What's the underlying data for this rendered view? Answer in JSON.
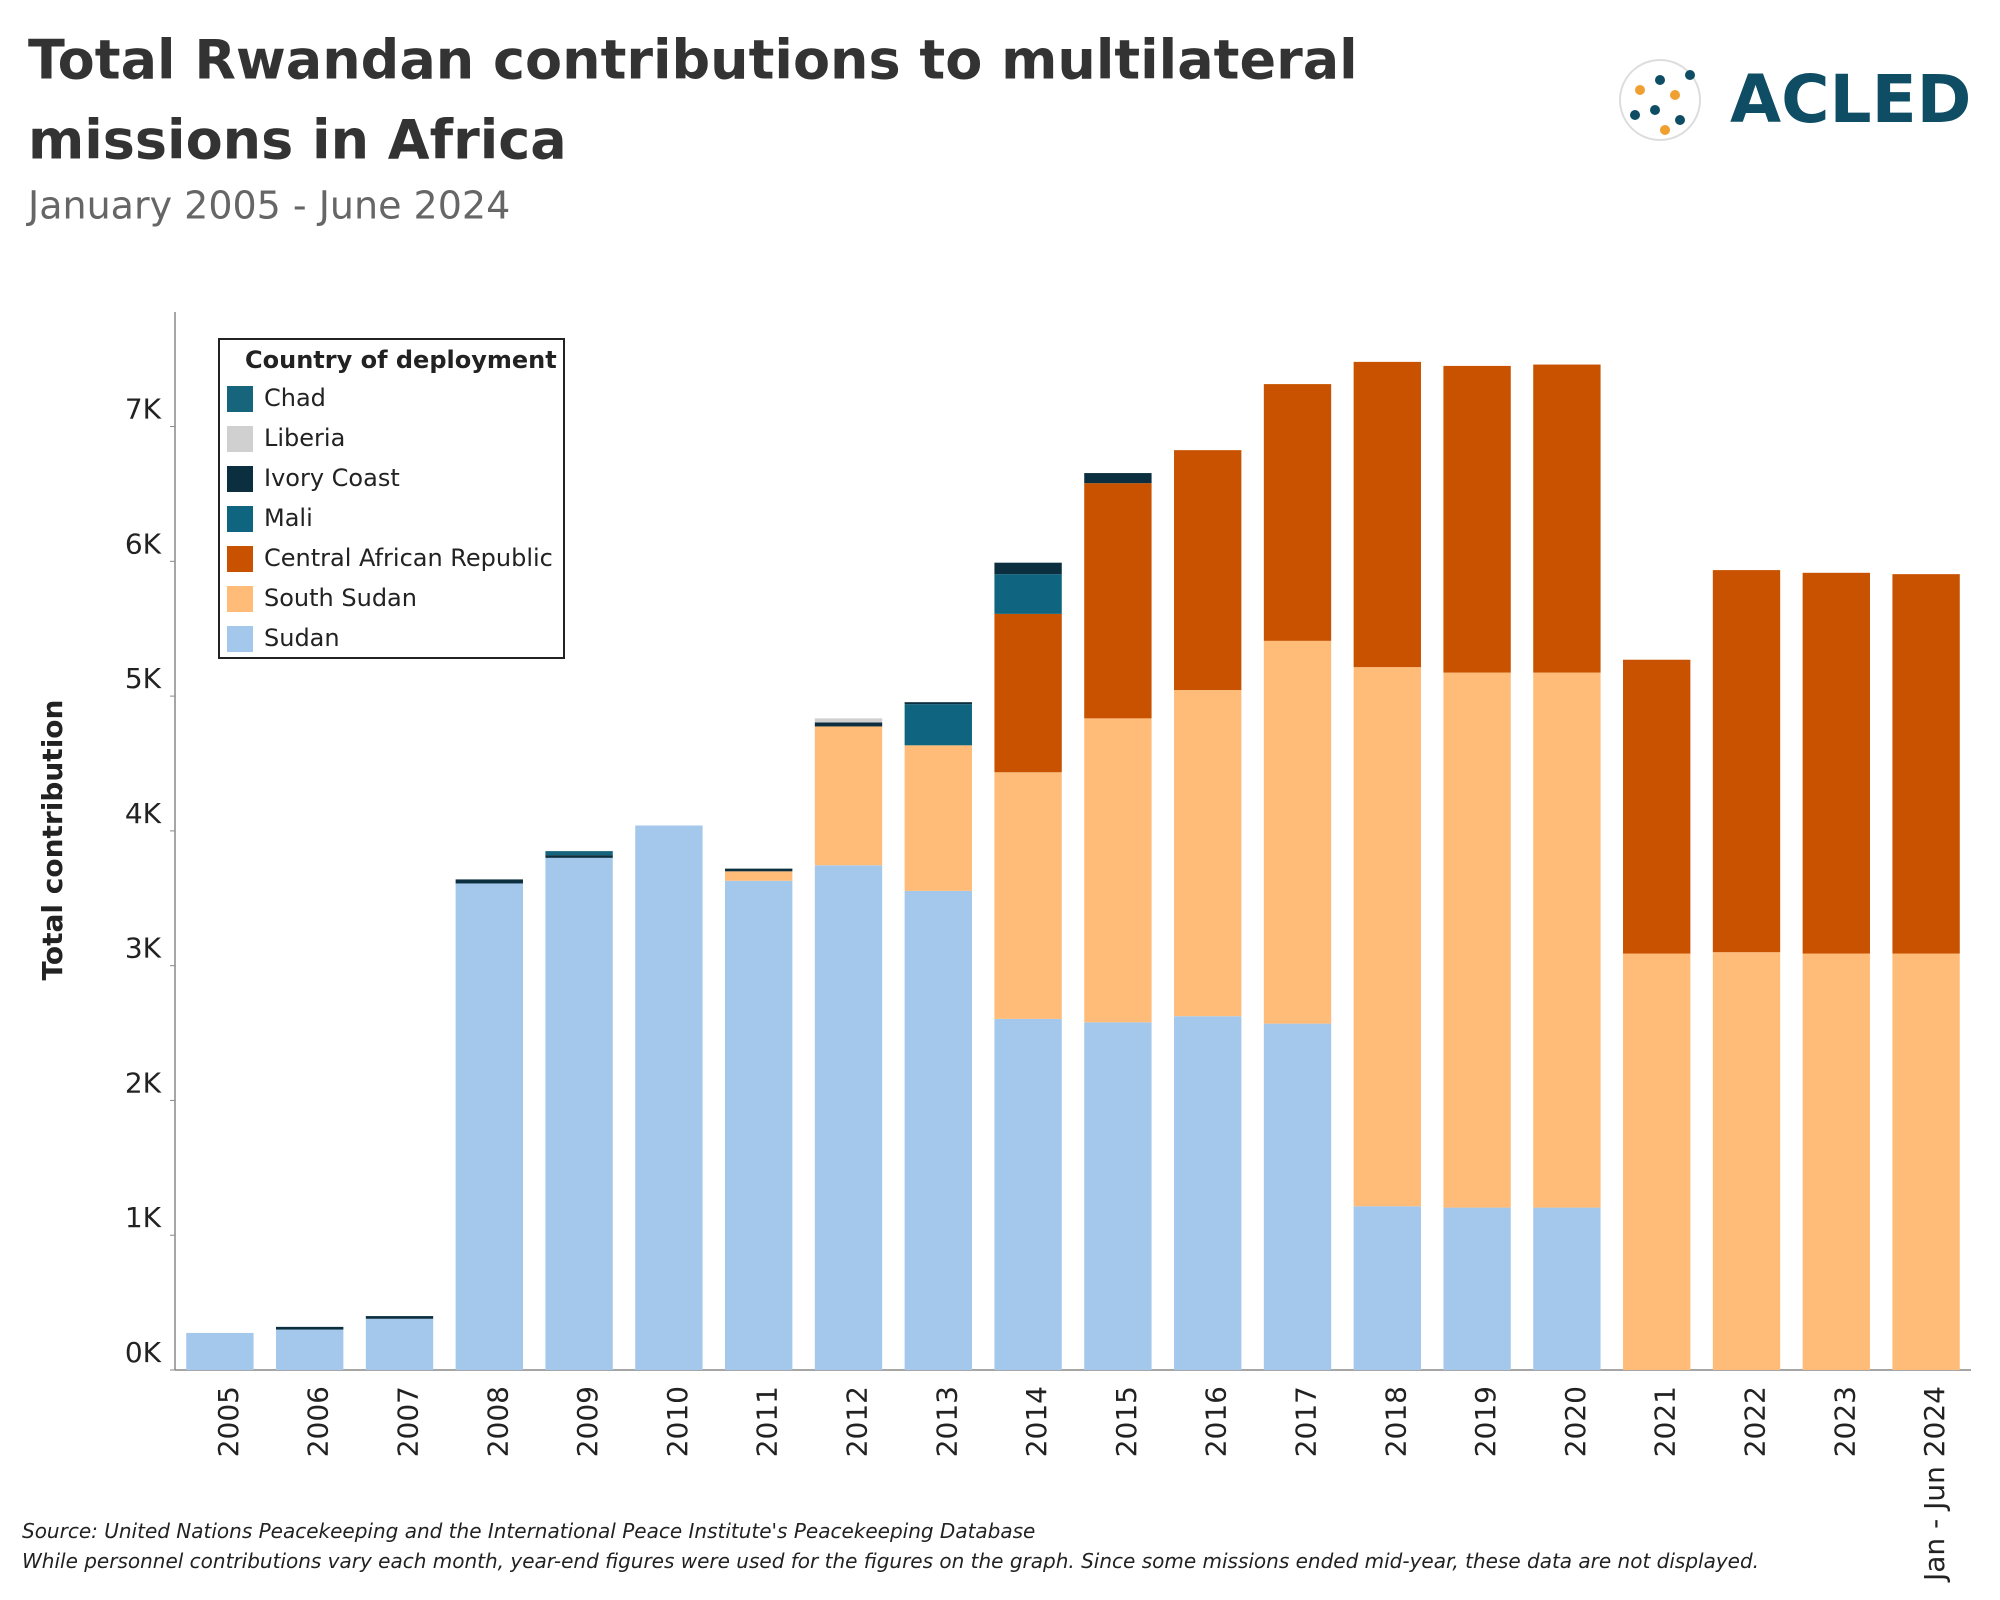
{
  "chart_data": {
    "type": "stacked_bar",
    "title_lines": [
      "Total Rwandan contributions to multilateral",
      "missions in Africa"
    ],
    "subtitle": "January 2005 - June 2024",
    "y_label": "Total contribution",
    "legend_title": "Country of deployment",
    "legend": "upper left",
    "grid": false,
    "logo": "ACLED",
    "notes": [
      "Source: United Nations Peacekeeping and the International Peace Institute's Peacekeeping Database",
      "While personnel contributions vary each month, year-end figures were used for the figures on the graph. Since some missions ended mid-year, these data are not displayed."
    ],
    "categories": [
      "2005",
      "2006",
      "2007",
      "2008",
      "2009",
      "2010",
      "2011",
      "2012",
      "2013",
      "2014",
      "2015",
      "2016",
      "2017",
      "2018",
      "2019",
      "2020",
      "2021",
      "2022",
      "2023",
      "Jan - Jun 2024"
    ],
    "ylim": [
      0,
      7850
    ],
    "yticks": [
      {
        "value": 0,
        "label": "0K"
      },
      {
        "value": 1000,
        "label": "1K"
      },
      {
        "value": 2000,
        "label": "2K"
      },
      {
        "value": 3000,
        "label": "3K"
      },
      {
        "value": 4000,
        "label": "4K"
      },
      {
        "value": 5000,
        "label": "5K"
      },
      {
        "value": 6000,
        "label": "6K"
      },
      {
        "value": 7000,
        "label": "7K"
      }
    ],
    "series": [
      {
        "name": "Chad",
        "color": "#17657d",
        "values": [
          null,
          null,
          null,
          null,
          30,
          null,
          null,
          null,
          null,
          null,
          null,
          null,
          null,
          null,
          null,
          null,
          null,
          null,
          null,
          null
        ]
      },
      {
        "name": "Liberia",
        "color": "#d0d0d0",
        "values": [
          null,
          null,
          null,
          null,
          null,
          null,
          null,
          30,
          null,
          null,
          null,
          null,
          null,
          null,
          null,
          null,
          null,
          null,
          null,
          null
        ]
      },
      {
        "name": "Ivory Coast",
        "color": "#0b2f3f",
        "values": [
          null,
          20,
          20,
          30,
          20,
          null,
          20,
          30,
          15,
          85,
          75,
          null,
          null,
          null,
          null,
          null,
          null,
          null,
          null,
          null
        ]
      },
      {
        "name": "Mali",
        "color": "#0f6580",
        "values": [
          null,
          null,
          null,
          null,
          null,
          null,
          null,
          null,
          305,
          295,
          null,
          null,
          null,
          null,
          null,
          null,
          null,
          null,
          null,
          null
        ]
      },
      {
        "name": "Central African Republic",
        "color": "#c85200",
        "values": [
          null,
          null,
          null,
          null,
          null,
          null,
          null,
          null,
          null,
          1175,
          1745,
          1780,
          1905,
          2265,
          2275,
          2285,
          2180,
          2835,
          2825,
          2815
        ]
      },
      {
        "name": "South Sudan",
        "color": "#ffbc79",
        "values": [
          null,
          null,
          null,
          null,
          null,
          null,
          70,
          1030,
          1080,
          1830,
          2255,
          2420,
          2840,
          4000,
          3970,
          3970,
          3090,
          3100,
          3090,
          3090
        ]
      },
      {
        "name": "Sudan",
        "color": "#a3c8ec",
        "values": [
          275,
          300,
          380,
          3610,
          3800,
          4040,
          3630,
          3745,
          3555,
          2605,
          2580,
          2625,
          2570,
          1215,
          1205,
          1205,
          null,
          null,
          null,
          null
        ]
      }
    ]
  }
}
